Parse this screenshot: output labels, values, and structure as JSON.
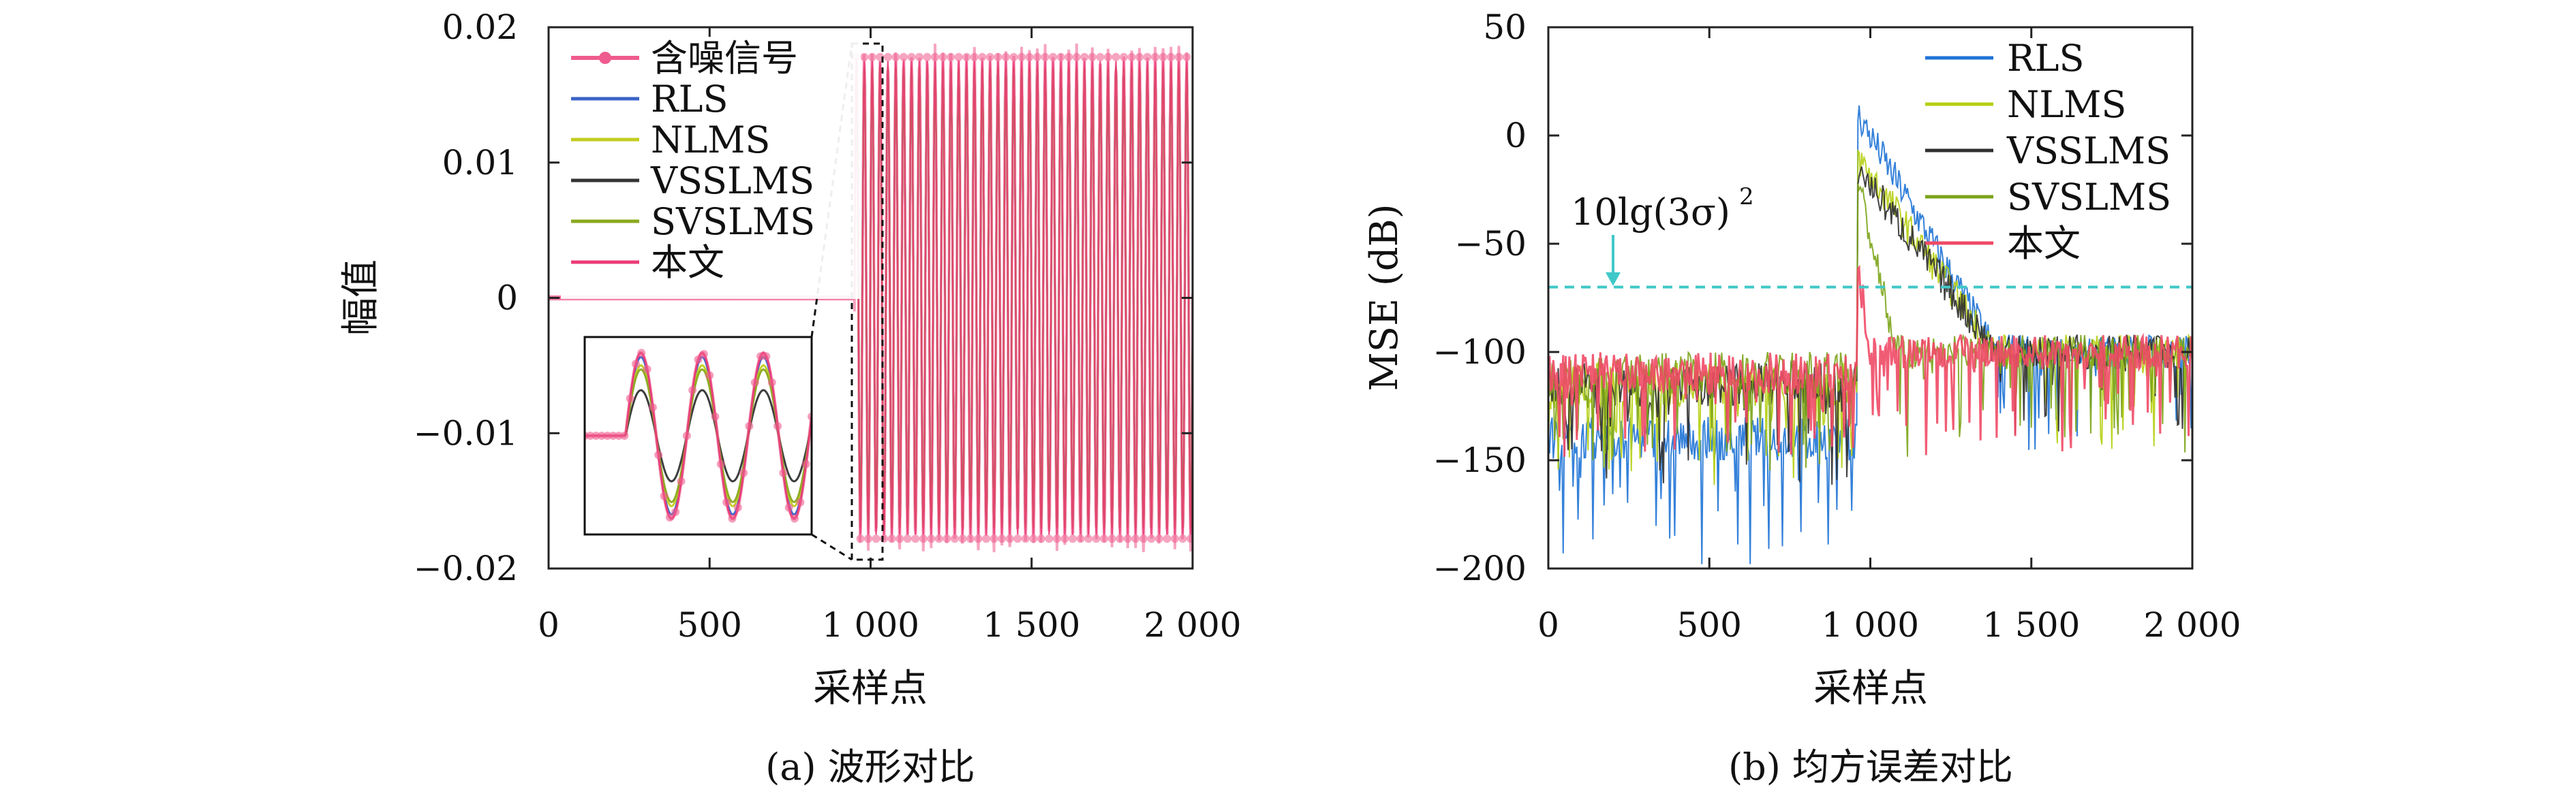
{
  "figure": {
    "panel_a_caption": "(a) 波形对比",
    "panel_b_caption": "(b) 均方误差对比"
  },
  "colors": {
    "noisy": "#ef5b8e",
    "rls": "#3a63c7",
    "nlms": "#c2cd1f",
    "vsslms": "#333333",
    "svslms": "#8aa91f",
    "ours": "#ec3b77",
    "mse_rls": "#1e73d6",
    "mse_nlms": "#b6cf12",
    "mse_vsslms": "#2f2f2f",
    "mse_svslms": "#7ca418",
    "mse_ours": "#ef4a66",
    "threshold": "#40c8c8"
  },
  "chart_data": [
    {
      "type": "line",
      "title": "",
      "xlabel": "采样点",
      "ylabel": "幅值",
      "xlim": [
        0,
        2000
      ],
      "ylim": [
        -0.02,
        0.02
      ],
      "xticks": [
        "0",
        "500",
        "1 000",
        "1 500",
        "2 000"
      ],
      "yticks": [
        "0.02",
        "0.01",
        "0",
        "−0.01",
        "−0.02"
      ],
      "legend_position": "top-left",
      "series": [
        {
          "name": "含噪信号",
          "amplitude": 0.0178,
          "start": 950,
          "noise": 0.001
        },
        {
          "name": "RLS",
          "amplitude": 0.017,
          "start": 950
        },
        {
          "name": "NLMS",
          "amplitude": 0.017,
          "start": 950
        },
        {
          "name": "VSSLMS",
          "amplitude": 0.017,
          "start": 950
        },
        {
          "name": "SVSLMS",
          "amplitude": 0.017,
          "start": 950
        },
        {
          "name": "本文",
          "amplitude": 0.0175,
          "start": 950
        }
      ],
      "signal": {
        "before_start_value": 0,
        "cycles_visible": 43
      },
      "inset": {
        "type": "line",
        "description_only": false,
        "series_amplitudes": {
          "含噪信号": 1.0,
          "RLS": 0.95,
          "NLMS": 0.85,
          "VSSLMS": 0.55,
          "SVSLMS": 0.8,
          "本文": 1.0
        }
      }
    },
    {
      "type": "line",
      "title": "",
      "xlabel": "采样点",
      "ylabel": "MSE (dB)",
      "xlim": [
        0,
        2000
      ],
      "ylim": [
        -200,
        50
      ],
      "xticks": [
        "0",
        "500",
        "1 000",
        "1 500",
        "2 000"
      ],
      "yticks": [
        "50",
        "0",
        "−50",
        "−100",
        "−150",
        "−200"
      ],
      "legend_position": "top-right",
      "annotation": {
        "text": "10lg(3σ)",
        "superscript": "2",
        "x": 200,
        "y": -70
      },
      "threshold_db": -70,
      "series": [
        {
          "name": "RLS",
          "before": -140,
          "peak": 10,
          "decay_to": -100
        },
        {
          "name": "NLMS",
          "before": -115,
          "peak": -10,
          "decay_to": -100
        },
        {
          "name": "VSSLMS",
          "before": -115,
          "peak": -15,
          "decay_to": -100
        },
        {
          "name": "SVSLMS",
          "before": -110,
          "peak": -20,
          "decay_to": -100
        },
        {
          "name": "本文",
          "before": -110,
          "peak": -60,
          "decay_to": -100
        }
      ],
      "step_at": 960
    }
  ]
}
